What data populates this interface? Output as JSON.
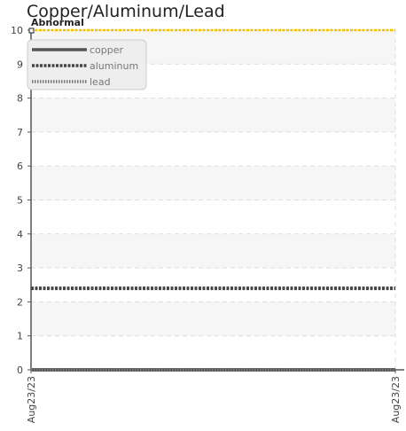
{
  "chart_data": {
    "type": "line",
    "title": "Copper/Aluminum/Lead",
    "xlabel": "",
    "ylabel": "",
    "x": [
      "Aug23/23",
      "Aug23/23"
    ],
    "x_tick_labels": [
      "Aug23/23",
      "Aug23/23"
    ],
    "ylim": [
      0,
      10
    ],
    "y_ticks": [
      0,
      1,
      2,
      3,
      4,
      5,
      6,
      7,
      8,
      9,
      10
    ],
    "grid": true,
    "legend_position": "top-left",
    "series": [
      {
        "name": "copper",
        "values": [
          0,
          0
        ],
        "color": "#555555",
        "style": "solid"
      },
      {
        "name": "aluminum",
        "values": [
          2.4,
          2.4
        ],
        "color": "#444444",
        "style": "dashed"
      },
      {
        "name": "lead",
        "values": [
          0,
          0
        ],
        "color": "#777777",
        "style": "dotted"
      }
    ],
    "threshold": {
      "label": "Abnormal",
      "value": 10,
      "color": "#f2c200"
    }
  }
}
